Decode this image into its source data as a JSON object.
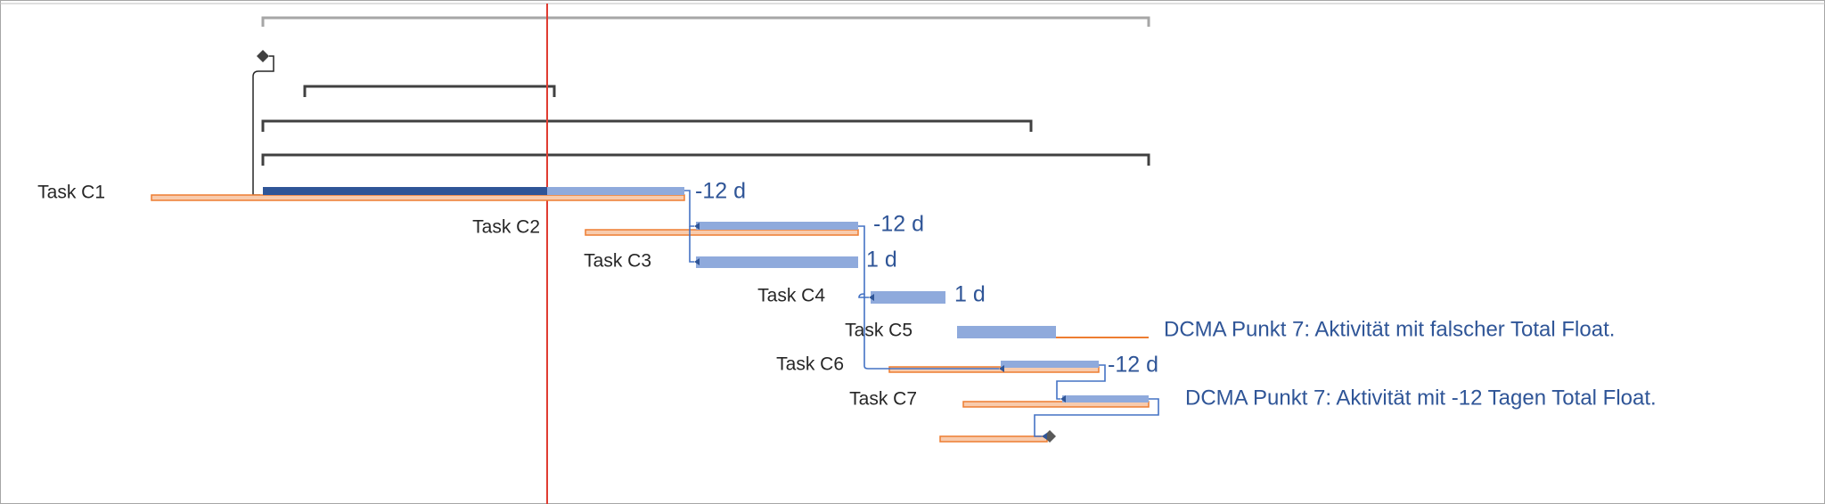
{
  "tasks": [
    {
      "label": "Task C1",
      "float": "-12 d"
    },
    {
      "label": "Task C2",
      "float": "-12 d"
    },
    {
      "label": "Task C3",
      "float": "1 d"
    },
    {
      "label": "Task C4",
      "float": "1 d"
    },
    {
      "label": "Task C5"
    },
    {
      "label": "Task C6",
      "float": "-12 d"
    },
    {
      "label": "Task C7"
    }
  ],
  "annotations": [
    "DCMA Punkt 7: Aktivität mit falscher Total Float.",
    "DCMA Punkt 7: Aktivität mit -12 Tagen Total Float."
  ]
}
